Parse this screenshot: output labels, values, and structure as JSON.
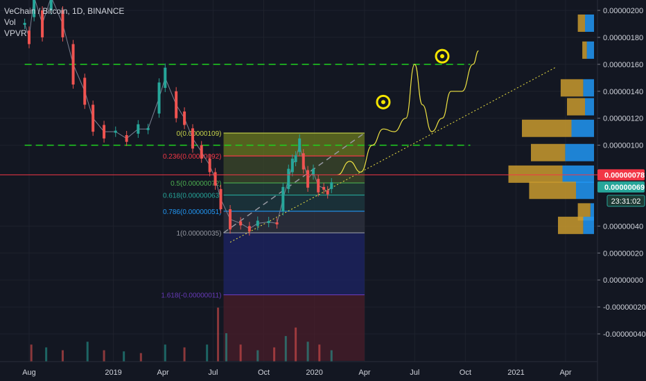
{
  "chart_data": {
    "type": "line",
    "title": "VeChain / Bitcoin, 1D, BINANCE",
    "indicators": [
      "Vol",
      "VPVR"
    ],
    "xlabel": "",
    "ylabel": "",
    "ylim": [
      -6e-07,
      2.06e-06
    ],
    "y_ticks": [
      {
        "v": 2e-06,
        "label": "0.00000200"
      },
      {
        "v": 1.8e-06,
        "label": "0.00000180"
      },
      {
        "v": 1.6e-06,
        "label": "0.00000160"
      },
      {
        "v": 1.4e-06,
        "label": "0.00000140"
      },
      {
        "v": 1.2e-06,
        "label": "0.00000120"
      },
      {
        "v": 1e-06,
        "label": "0.00000100"
      },
      {
        "v": 4e-07,
        "label": "0.00000040"
      },
      {
        "v": 2e-07,
        "label": "0.00000020"
      },
      {
        "v": 0,
        "label": "0.00000000"
      },
      {
        "v": -2e-07,
        "label": "-0.00000020"
      },
      {
        "v": -4e-07,
        "label": "-0.00000040"
      }
    ],
    "x_ticks": [
      {
        "d": "2018-08-01",
        "label": "Aug"
      },
      {
        "d": "2019-01-01",
        "label": "2019"
      },
      {
        "d": "2019-04-01",
        "label": "Apr"
      },
      {
        "d": "2019-07-01",
        "label": "Jul"
      },
      {
        "d": "2019-10-01",
        "label": "Oct"
      },
      {
        "d": "2020-01-01",
        "label": "2020"
      },
      {
        "d": "2020-04-01",
        "label": "Apr"
      },
      {
        "d": "2020-07-01",
        "label": "Jul"
      },
      {
        "d": "2020-10-01",
        "label": "Oct"
      },
      {
        "d": "2021-01-01",
        "label": "2021"
      },
      {
        "d": "2021-04-01",
        "label": "Apr"
      }
    ],
    "price_series": {
      "name": "VeChain / Bitcoin",
      "points": [
        [
          "2018-07-24",
          1.9e-06
        ],
        [
          "2018-08-01",
          1.8e-06
        ],
        [
          "2018-08-10",
          2.1e-06
        ],
        [
          "2018-08-25",
          1.9e-06
        ],
        [
          "2018-09-10",
          2.1e-06
        ],
        [
          "2018-10-01",
          1.9e-06
        ],
        [
          "2018-10-20",
          1.6e-06
        ],
        [
          "2018-11-10",
          1.4e-06
        ],
        [
          "2018-11-25",
          1.2e-06
        ],
        [
          "2018-12-15",
          1.1e-06
        ],
        [
          "2019-01-05",
          1.1e-06
        ],
        [
          "2019-01-25",
          1.05e-06
        ],
        [
          "2019-02-15",
          1.12e-06
        ],
        [
          "2019-03-05",
          1.12e-06
        ],
        [
          "2019-03-25",
          1.35e-06
        ],
        [
          "2019-04-05",
          1.5e-06
        ],
        [
          "2019-04-25",
          1.3e-06
        ],
        [
          "2019-05-10",
          1.2e-06
        ],
        [
          "2019-05-25",
          1.05e-06
        ],
        [
          "2019-06-10",
          9.5e-07
        ],
        [
          "2019-06-25",
          8.5e-07
        ],
        [
          "2019-07-05",
          7.5e-07
        ],
        [
          "2019-07-15",
          6e-07
        ],
        [
          "2019-08-01",
          4.5e-07
        ],
        [
          "2019-08-20",
          4.2e-07
        ],
        [
          "2019-09-05",
          3.8e-07
        ],
        [
          "2019-09-20",
          4.2e-07
        ],
        [
          "2019-10-10",
          4.3e-07
        ],
        [
          "2019-10-25",
          4.2e-07
        ],
        [
          "2019-11-05",
          6e-07
        ],
        [
          "2019-11-15",
          7.5e-07
        ],
        [
          "2019-11-22",
          8.5e-07
        ],
        [
          "2019-11-28",
          9e-07
        ],
        [
          "2019-12-05",
          1e-06
        ],
        [
          "2019-12-12",
          8.8e-07
        ],
        [
          "2019-12-20",
          7.5e-07
        ],
        [
          "2019-12-30",
          8e-07
        ],
        [
          "2020-01-08",
          7e-07
        ],
        [
          "2020-01-18",
          6.8e-07
        ],
        [
          "2020-01-25",
          6.5e-07
        ],
        [
          "2020-02-01",
          7e-07
        ]
      ]
    },
    "projection_path": {
      "points": [
        [
          "2020-02-12",
          7.8e-07
        ],
        [
          "2020-03-05",
          8.8e-07
        ],
        [
          "2020-03-25",
          8e-07
        ],
        [
          "2020-04-15",
          1e-06
        ],
        [
          "2020-05-05",
          1.12e-06
        ],
        [
          "2020-05-25",
          1.1e-06
        ],
        [
          "2020-06-15",
          1.2e-06
        ],
        [
          "2020-07-01",
          1.6e-06
        ],
        [
          "2020-07-15",
          1.3e-06
        ],
        [
          "2020-08-01",
          1.1e-06
        ],
        [
          "2020-08-20",
          1.2e-06
        ],
        [
          "2020-09-05",
          1.4e-06
        ],
        [
          "2020-09-25",
          1.4e-06
        ],
        [
          "2020-10-15",
          1.6e-06
        ],
        [
          "2020-10-25",
          1.7e-06
        ]
      ],
      "color": "#f0e442"
    },
    "horizontal_lines": [
      {
        "name": "resistance",
        "value": 1.6e-06,
        "from": "2018-07-24",
        "to": "2020-10-10",
        "color": "#1fd31f"
      },
      {
        "name": "support",
        "value": 1e-06,
        "from": "2018-07-24",
        "to": "2020-10-10",
        "color": "#1fd31f"
      }
    ],
    "trendline": {
      "from": [
        "2019-08-01",
        2.8e-07
      ],
      "to": [
        "2021-03-15",
        1.58e-06
      ],
      "color": "#f0e442"
    },
    "fib_retracement": {
      "from_date": "2019-07-20",
      "to_date": "2020-04-01",
      "levels": [
        {
          "ratio": 0,
          "value": 1.09e-06,
          "label": "0(0.00000109)",
          "color": "#c8d44a"
        },
        {
          "ratio": 0.236,
          "value": 9.2e-07,
          "label": "0.236(0.00000092)",
          "color": "#f23645"
        },
        {
          "ratio": 0.5,
          "value": 7.2e-07,
          "label": "0.5(0.00000072)",
          "color": "#4caf50"
        },
        {
          "ratio": 0.618,
          "value": 6.3e-07,
          "label": "0.618(0.00000063)",
          "color": "#26a69a"
        },
        {
          "ratio": 0.786,
          "value": 5.1e-07,
          "label": "0.786(0.00000051)",
          "color": "#2196f3"
        },
        {
          "ratio": 1,
          "value": 3.5e-07,
          "label": "1(0.00000035)",
          "color": "#9598a1"
        },
        {
          "ratio": 1.618,
          "value": -1.1e-07,
          "label": "1.618(-0.00000011)",
          "color": "#673ab7"
        }
      ],
      "bands": [
        {
          "from": 1.09e-06,
          "to": 9.2e-07,
          "color": "#6b7a1f"
        },
        {
          "from": 9.2e-07,
          "to": 7.2e-07,
          "color": "#3d4a2b"
        },
        {
          "from": 7.2e-07,
          "to": 6.3e-07,
          "color": "#23403a"
        },
        {
          "from": 6.3e-07,
          "to": 5.1e-07,
          "color": "#1d3a40"
        },
        {
          "from": 5.1e-07,
          "to": 3.5e-07,
          "color": "#2f3340"
        },
        {
          "from": 3.5e-07,
          "to": -1.1e-07,
          "color": "#1e2466"
        },
        {
          "from": -1.1e-07,
          "to": -6e-07,
          "color": "#4a1e2a"
        }
      ]
    },
    "price_tags": [
      {
        "name": "last-price",
        "value": 7.8e-07,
        "label": "0.00000078",
        "color": "#f23645"
      },
      {
        "name": "current-price",
        "value": 6.9e-07,
        "label": "0.00000069",
        "color": "#26a69a"
      }
    ],
    "countdown": "23:31:02",
    "markers": [
      {
        "date": "2020-05-05",
        "value": 1.32e-06
      },
      {
        "date": "2020-08-20",
        "value": 1.66e-06
      }
    ],
    "vpvr_profile": [
      {
        "price": 1.42e-06,
        "up": 0.25,
        "down": 0.12
      },
      {
        "price": 1.28e-06,
        "up": 0.2,
        "down": 0.1
      },
      {
        "price": 1.12e-06,
        "up": 0.55,
        "down": 0.25
      },
      {
        "price": 9.4e-07,
        "up": 0.38,
        "down": 0.32
      },
      {
        "price": 7.8e-07,
        "up": 0.6,
        "down": 0.35
      },
      {
        "price": 6.6e-07,
        "up": 0.52,
        "down": 0.2
      },
      {
        "price": 5e-07,
        "up": 0.14,
        "down": 0.04
      },
      {
        "price": 4e-07,
        "up": 0.28,
        "down": 0.12
      },
      {
        "price": 1.9e-06,
        "up": 0.08,
        "down": 0.1
      },
      {
        "price": 1.7e-06,
        "up": 0.05,
        "down": 0.08
      }
    ],
    "volume": {
      "note": "volume histogram shown at bottom",
      "bars": [
        [
          "2018-08-05",
          0.3
        ],
        [
          "2018-09-01",
          0.25
        ],
        [
          "2018-10-01",
          0.2
        ],
        [
          "2018-11-15",
          0.35
        ],
        [
          "2018-12-15",
          0.2
        ],
        [
          "2019-01-20",
          0.18
        ],
        [
          "2019-02-20",
          0.15
        ],
        [
          "2019-04-05",
          0.3
        ],
        [
          "2019-05-10",
          0.25
        ],
        [
          "2019-06-20",
          0.3
        ],
        [
          "2019-07-10",
          0.95
        ],
        [
          "2019-07-25",
          0.5
        ],
        [
          "2019-08-20",
          0.3
        ],
        [
          "2019-09-20",
          0.2
        ],
        [
          "2019-10-20",
          0.25
        ],
        [
          "2019-11-10",
          0.45
        ],
        [
          "2019-11-28",
          0.6
        ],
        [
          "2019-12-20",
          0.35
        ],
        [
          "2020-01-10",
          0.3
        ],
        [
          "2020-02-01",
          0.2
        ]
      ]
    },
    "colors": {
      "background": "#131722",
      "grid": "#1e222d",
      "axis_text": "#d1d4dc",
      "candle_up": "#26a69a",
      "candle_down": "#ef5350",
      "vpvr_up": "#2196f3",
      "vpvr_down": "#c99a2e"
    }
  }
}
